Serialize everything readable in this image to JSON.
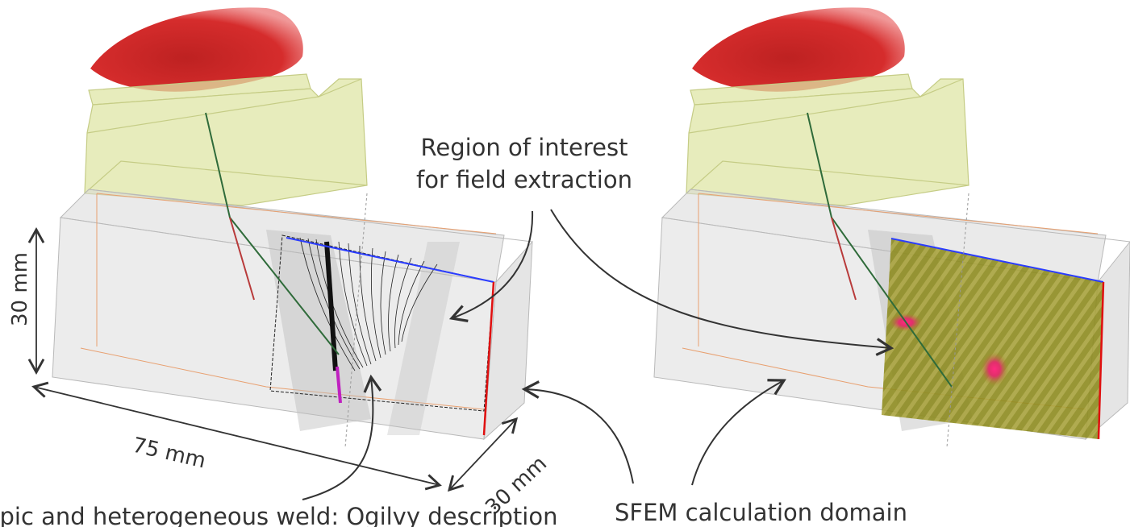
{
  "labels": {
    "roi_line1": "Region of interest",
    "roi_line2": "for field extraction",
    "sfem": "SFEM calculation domain",
    "aniso": "Anisotropic and heterogeneous weld: Ogilvy description"
  },
  "dimensions": {
    "height": "30 mm",
    "length": "75 mm",
    "depth": "30 mm"
  },
  "colors": {
    "probe_red": "#d01818",
    "wedge_fill": "#dfe6a6",
    "block_fill": "#d9d9d9",
    "field_fill": "#8a8a1e",
    "edge_blue": "#2a3cff",
    "edge_red": "#e01010",
    "edge_orange": "#e8a070",
    "ray_green": "#2f6b3a",
    "ray_red": "#b83a3a",
    "arrow_gray": "#333333"
  }
}
